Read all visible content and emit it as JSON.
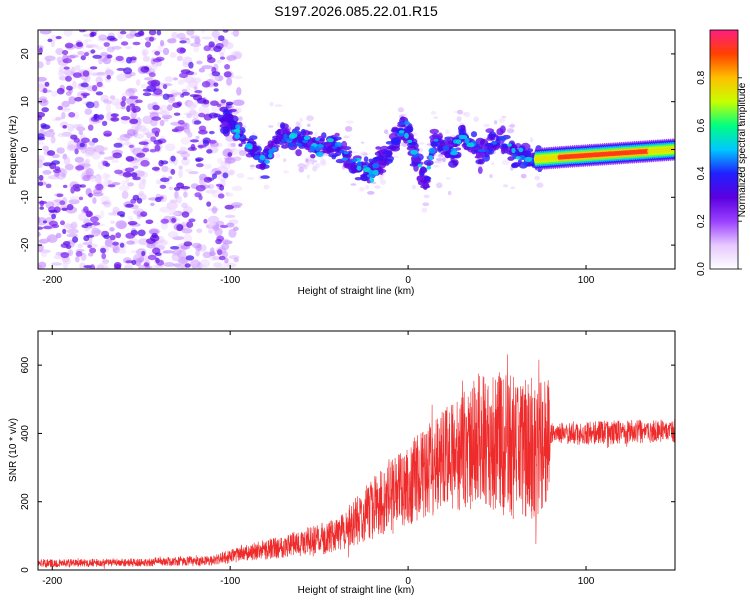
{
  "title": "S197.2026.085.22.01.R15",
  "chart_data": [
    {
      "type": "heatmap",
      "name": "spectrogram",
      "xlabel": "Height of straight line (km)",
      "ylabel": "Frequency (Hz)",
      "xlim": [
        -208,
        150
      ],
      "ylim": [
        -25,
        25
      ],
      "xticks": [
        -200,
        -100,
        0,
        100
      ],
      "yticks": [
        -20,
        -10,
        0,
        10,
        20
      ],
      "colorbar": {
        "label": "Normalized spectral amplitude",
        "range": [
          0,
          1
        ],
        "ticks": [
          "0.0",
          "0.2",
          "0.4",
          "0.6",
          "0.8"
        ],
        "tick_values": [
          0,
          0.2,
          0.4,
          0.6,
          0.8
        ],
        "colors": [
          "#ffffff",
          "#e6c8ff",
          "#9a40ff",
          "#5a00e0",
          "#2020ff",
          "#00c8ff",
          "#00ff80",
          "#c8ff00",
          "#ffc000",
          "#ff4000",
          "#ff1e82"
        ]
      },
      "ridge": [
        {
          "x": -100,
          "y": 6
        },
        {
          "x": -90,
          "y": 1
        },
        {
          "x": -80,
          "y": -3
        },
        {
          "x": -72,
          "y": 3
        },
        {
          "x": -60,
          "y": 2
        },
        {
          "x": -50,
          "y": 0
        },
        {
          "x": -40,
          "y": 1
        },
        {
          "x": -30,
          "y": -3
        },
        {
          "x": -20,
          "y": -5
        },
        {
          "x": -10,
          "y": 0
        },
        {
          "x": -3,
          "y": 5
        },
        {
          "x": 0,
          "y": 3
        },
        {
          "x": 5,
          "y": -3
        },
        {
          "x": 10,
          "y": -7
        },
        {
          "x": 15,
          "y": 2
        },
        {
          "x": 25,
          "y": -1
        },
        {
          "x": 30,
          "y": 3
        },
        {
          "x": 40,
          "y": -1
        },
        {
          "x": 50,
          "y": 2
        },
        {
          "x": 60,
          "y": -1
        },
        {
          "x": 72,
          "y": -2
        },
        {
          "x": 90,
          "y": -1.5
        },
        {
          "x": 110,
          "y": -1
        },
        {
          "x": 130,
          "y": -0.5
        },
        {
          "x": 150,
          "y": 0
        }
      ]
    },
    {
      "type": "line",
      "name": "snr",
      "color": "#ee2a2a",
      "xlabel": "Height of straight line (km)",
      "ylabel": "SNR (10 * v/v)",
      "xlim": [
        -208,
        150
      ],
      "ylim": [
        0,
        700
      ],
      "xticks": [
        -200,
        -100,
        0,
        100
      ],
      "yticks": [
        0,
        200,
        400,
        600
      ],
      "envelope": [
        {
          "x": -208,
          "mean": 20,
          "amp": 12
        },
        {
          "x": -150,
          "mean": 22,
          "amp": 12
        },
        {
          "x": -110,
          "mean": 28,
          "amp": 15
        },
        {
          "x": -100,
          "mean": 40,
          "amp": 20
        },
        {
          "x": -80,
          "mean": 60,
          "amp": 30
        },
        {
          "x": -60,
          "mean": 80,
          "amp": 40
        },
        {
          "x": -40,
          "mean": 100,
          "amp": 50
        },
        {
          "x": -20,
          "mean": 180,
          "amp": 90
        },
        {
          "x": 0,
          "mean": 250,
          "amp": 120
        },
        {
          "x": 20,
          "mean": 320,
          "amp": 150
        },
        {
          "x": 40,
          "mean": 380,
          "amp": 200
        },
        {
          "x": 60,
          "mean": 360,
          "amp": 220
        },
        {
          "x": 79,
          "mean": 360,
          "amp": 200
        },
        {
          "x": 80,
          "mean": 400,
          "amp": 30
        },
        {
          "x": 100,
          "mean": 400,
          "amp": 35
        },
        {
          "x": 150,
          "mean": 410,
          "amp": 35
        }
      ]
    }
  ]
}
